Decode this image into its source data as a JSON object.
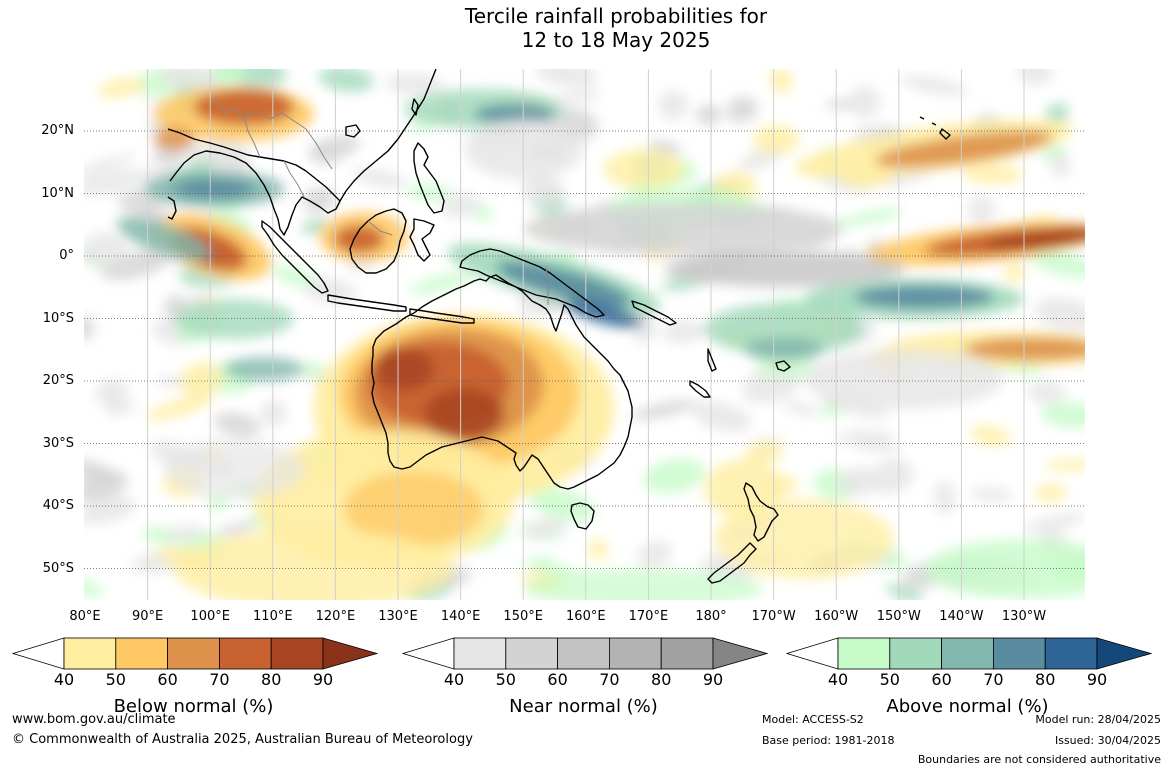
{
  "title": {
    "line1": "Tercile rainfall probabilities for",
    "line2": "12 to 18 May 2025"
  },
  "lat_labels": [
    "20°N",
    "10°N",
    "0°",
    "10°S",
    "20°S",
    "30°S",
    "40°S",
    "50°S"
  ],
  "lon_labels": [
    "80°E",
    "90°E",
    "100°E",
    "110°E",
    "120°E",
    "130°E",
    "140°E",
    "150°E",
    "160°E",
    "170°E",
    "180°",
    "170°W",
    "160°W",
    "150°W",
    "140°W",
    "130°W"
  ],
  "colorbars": [
    {
      "title": "Below normal (%)",
      "ticks": [
        "40",
        "50",
        "60",
        "70",
        "80",
        "90"
      ],
      "colors": [
        "#ffffff",
        "#ffeda0",
        "#fec965",
        "#dd914a",
        "#c7612f",
        "#a84523",
        "#8b331a"
      ]
    },
    {
      "title": "Near normal (%)",
      "ticks": [
        "40",
        "50",
        "60",
        "70",
        "80",
        "90"
      ],
      "colors": [
        "#ffffff",
        "#e5e5e5",
        "#d3d3d3",
        "#c3c3c3",
        "#b3b3b3",
        "#a2a2a2",
        "#858585"
      ]
    },
    {
      "title": "Above normal (%)",
      "ticks": [
        "40",
        "50",
        "60",
        "70",
        "80",
        "90"
      ],
      "colors": [
        "#ffffff",
        "#c6fbc8",
        "#a2d9bb",
        "#82b7ad",
        "#5a8ca0",
        "#2f6596",
        "#15487a"
      ]
    }
  ],
  "footer": {
    "website": "www.bom.gov.au/climate",
    "copyright": "© Commonwealth of Australia 2025, Australian Bureau of Meteorology",
    "model": "Model: ACCESS-S2",
    "base_period": "Base period: 1981-2018",
    "model_run": "Model run: 28/04/2025",
    "issued": "Issued: 30/04/2025",
    "disclaimer": "Boundaries are not considered authoritative"
  }
}
